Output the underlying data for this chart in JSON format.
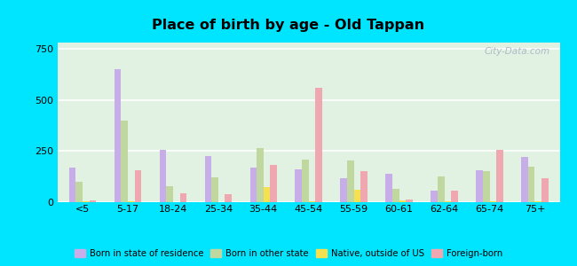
{
  "title": "Place of birth by age - Old Tappan",
  "categories": [
    "<5",
    "5-17",
    "18-24",
    "25-34",
    "35-44",
    "45-54",
    "55-59",
    "60-61",
    "62-64",
    "65-74",
    "75+"
  ],
  "series": {
    "Born in state of residence": [
      170,
      650,
      255,
      225,
      170,
      160,
      115,
      140,
      55,
      155,
      220
    ],
    "Born in other state": [
      100,
      400,
      80,
      120,
      265,
      210,
      205,
      65,
      125,
      150,
      175
    ],
    "Native, outside of US": [
      4,
      4,
      2,
      2,
      75,
      4,
      60,
      8,
      4,
      4,
      4
    ],
    "Foreign-born": [
      8,
      155,
      45,
      40,
      180,
      560,
      150,
      12,
      55,
      255,
      115
    ]
  },
  "colors": {
    "Born in state of residence": "#c8aee8",
    "Born in other state": "#c0d8a0",
    "Native, outside of US": "#f5e050",
    "Foreign-born": "#f0a8b0"
  },
  "ylim": [
    0,
    780
  ],
  "yticks": [
    0,
    250,
    500,
    750
  ],
  "bar_width": 0.15,
  "background_color": "#e2f2e2",
  "outer_background": "#00e5ff",
  "legend_labels": [
    "Born in state of residence",
    "Born in other state",
    "Native, outside of US",
    "Foreign-born"
  ]
}
